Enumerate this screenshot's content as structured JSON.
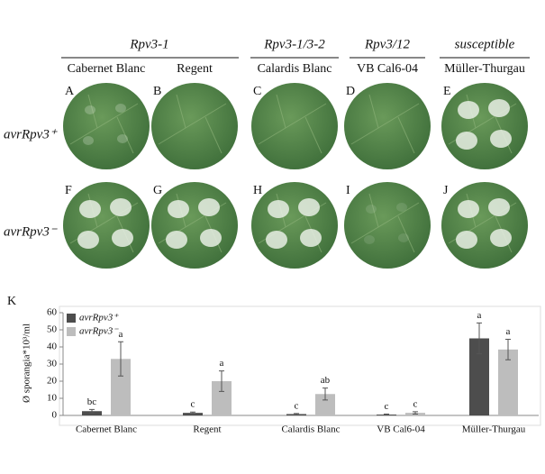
{
  "group_labels": [
    "Rpv3-1",
    "Rpv3-1/3-2",
    "Rpv3/12",
    "susceptible"
  ],
  "cultivar_labels": [
    "Cabernet Blanc",
    "Regent",
    "Calardis Blanc",
    "VB Cal6-04",
    "Müller-Thurgau"
  ],
  "panel_letters": [
    "A",
    "B",
    "C",
    "D",
    "E",
    "F",
    "G",
    "H",
    "I",
    "J"
  ],
  "row_labels": [
    "avrRpv3⁺",
    "avrRpv3⁻"
  ],
  "chart_data": {
    "type": "bar",
    "panel_letter": "K",
    "ylabel": "Ø sporangia*10³/ml",
    "categories": [
      "Cabernet Blanc",
      "Regent",
      "Calardis Blanc",
      "VB Cal6-04",
      "Müller-Thurgau"
    ],
    "series": [
      {
        "name": "avrRpv3⁺",
        "color": "#4d4d4d",
        "values": [
          2.5,
          1.5,
          0.8,
          0.5,
          45
        ],
        "errors": [
          1,
          0.5,
          0.3,
          0.3,
          9
        ],
        "letters": [
          "bc",
          "c",
          "c",
          "c",
          "a"
        ]
      },
      {
        "name": "avrRpv3⁻",
        "color": "#bdbdbd",
        "values": [
          33,
          20,
          12.5,
          1.5,
          38.5
        ],
        "errors": [
          10,
          6,
          3.5,
          0.7,
          6
        ],
        "letters": [
          "a",
          "a",
          "ab",
          "c",
          "a"
        ]
      }
    ],
    "ylim": [
      0,
      60
    ],
    "yticks": [
      0,
      10,
      20,
      30,
      40,
      50,
      60
    ]
  }
}
